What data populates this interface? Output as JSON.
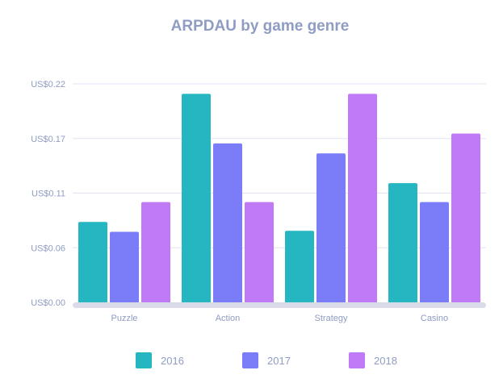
{
  "chart_data": {
    "type": "bar",
    "title": "ARPDAU by game genre",
    "categories": [
      "Puzzle",
      "Action",
      "Strategy",
      "Casino"
    ],
    "series": [
      {
        "name": "2016",
        "color": "#26b6c1",
        "values": [
          0.081,
          0.21,
          0.072,
          0.12
        ]
      },
      {
        "name": "2017",
        "color": "#7b7cf8",
        "values": [
          0.071,
          0.16,
          0.15,
          0.101
        ]
      },
      {
        "name": "2018",
        "color": "#c07af7",
        "values": [
          0.101,
          0.101,
          0.21,
          0.17
        ]
      }
    ],
    "yticks": [
      "US$0.00",
      "US$0.06",
      "US$0.11",
      "US$0.17",
      "US$0.22"
    ],
    "ylim": [
      0,
      0.22
    ],
    "grid": true,
    "legend_position": "bottom"
  }
}
